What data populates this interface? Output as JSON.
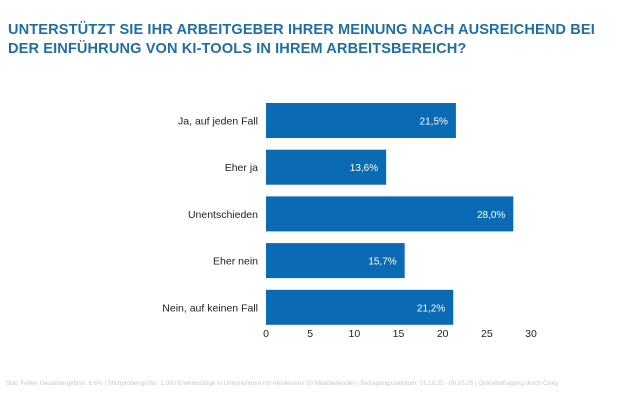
{
  "title": "UNTERSTÜTZT SIE IHR ARBEITGEBER IHRER MEINUNG NACH AUSREICHEND BEI DER EINFÜHRUNG VON KI-TOOLS IN IHREM ARBEITSBEREICH?",
  "footer": "Stat. Fehler Gesamtergebnis: 6,6% | Stichprobengröße: 1.000 Erwerbstätige in Unternehmen mit mindestens 50 Mitarbeitenden | Befragungszeitraum: 01.10.25 - 09.10.25 | Onlinebefragung durch Civey",
  "chart_data": {
    "type": "bar",
    "orientation": "horizontal",
    "categories": [
      "Ja, auf jeden Fall",
      "Eher ja",
      "Unentschieden",
      "Eher nein",
      "Nein, auf keinen Fall"
    ],
    "values": [
      21.5,
      13.6,
      28.0,
      15.7,
      21.2
    ],
    "data_labels": [
      "21,5%",
      "13,6%",
      "28,0%",
      "15,7%",
      "21,2%"
    ],
    "xlim": [
      0,
      30
    ],
    "xticks": [
      0,
      5,
      10,
      15,
      20,
      25,
      30
    ],
    "grid": false,
    "bar_color": "#0a6ab3",
    "label_color": "#ffffff"
  }
}
